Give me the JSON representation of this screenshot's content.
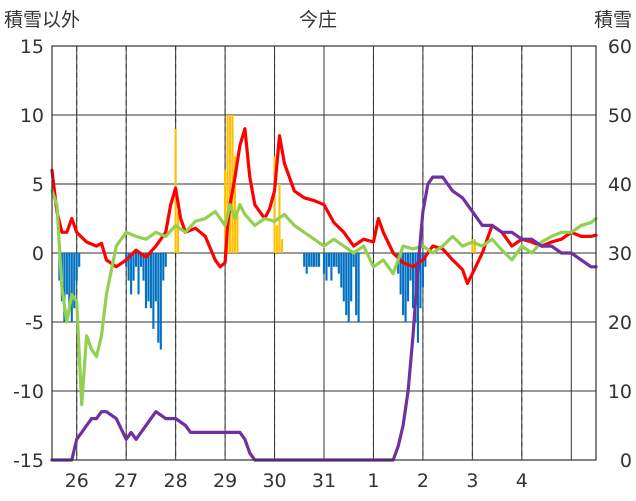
{
  "chart_data": {
    "type": "line",
    "title": "今庄",
    "ylabel_left": "積雪以外",
    "ylabel_right": "積雪",
    "y_left_range": [
      -15,
      15
    ],
    "y_left_ticks": [
      "-15",
      "-10",
      "-5",
      "0",
      "5",
      "10",
      "15"
    ],
    "y_right_range": [
      0,
      60
    ],
    "y_right_ticks": [
      "0",
      "10",
      "20",
      "30",
      "40",
      "50",
      "60"
    ],
    "x_range": [
      25.5,
      36.5
    ],
    "x_tick_labels": [
      "26",
      "27",
      "28",
      "29",
      "30",
      "31",
      "1",
      "2",
      "3",
      "4"
    ],
    "grid": true,
    "colors": {
      "red_series": "#ff0000",
      "green_series": "#92d050",
      "purple_series": "#7030a0",
      "orange_bars": "#ffc000",
      "blue_bars": "#0070c0",
      "grid": "#333333"
    },
    "series": [
      {
        "color": "#ff0000",
        "axis": "left",
        "x": [
          25.5,
          25.6,
          25.7,
          25.8,
          25.9,
          26.0,
          26.2,
          26.4,
          26.5,
          26.6,
          26.8,
          27.0,
          27.2,
          27.4,
          27.6,
          27.8,
          27.9,
          28.0,
          28.1,
          28.2,
          28.4,
          28.6,
          28.8,
          28.9,
          29.0,
          29.05,
          29.1,
          29.2,
          29.3,
          29.4,
          29.5,
          29.6,
          29.8,
          29.9,
          30.0,
          30.05,
          30.1,
          30.2,
          30.4,
          30.6,
          30.8,
          31.0,
          31.2,
          31.4,
          31.6,
          31.8,
          32.0,
          32.1,
          32.2,
          32.4,
          32.6,
          32.8,
          33.0,
          33.2,
          33.4,
          33.6,
          33.8,
          33.9,
          34.0,
          34.2,
          34.4,
          34.6,
          34.8,
          35.0,
          35.2,
          35.4,
          35.6,
          35.8,
          36.0,
          36.2,
          36.4,
          36.5
        ],
        "y": [
          6,
          3,
          1.5,
          1.5,
          2.5,
          1.5,
          0.8,
          0.5,
          0.7,
          -0.5,
          -1,
          -0.5,
          0.2,
          -0.3,
          0.5,
          1.5,
          3.5,
          4.7,
          2.5,
          1.5,
          1.8,
          1.2,
          -0.5,
          -1,
          -0.7,
          2,
          3.5,
          5.5,
          7.8,
          9,
          5.5,
          3.5,
          2.5,
          3.2,
          4.5,
          6.5,
          8.5,
          6.5,
          4.5,
          4,
          3.8,
          3.5,
          2.2,
          1.5,
          0.5,
          1,
          0.8,
          2.5,
          1.5,
          0,
          -0.7,
          -1,
          -0.5,
          0.5,
          0.3,
          -0.5,
          -1.2,
          -2.2,
          -1.5,
          0,
          2,
          1.5,
          0.5,
          1,
          0.8,
          0.5,
          0.8,
          1,
          1.5,
          1.2,
          1.2,
          1.3
        ]
      },
      {
        "color": "#92d050",
        "axis": "left",
        "x": [
          25.5,
          25.6,
          25.7,
          25.8,
          25.9,
          26.0,
          26.1,
          26.2,
          26.3,
          26.4,
          26.5,
          26.6,
          26.8,
          27.0,
          27.2,
          27.4,
          27.6,
          27.8,
          28.0,
          28.2,
          28.4,
          28.6,
          28.8,
          29.0,
          29.1,
          29.2,
          29.3,
          29.4,
          29.6,
          29.8,
          30.0,
          30.2,
          30.4,
          30.6,
          30.8,
          31.0,
          31.2,
          31.4,
          31.6,
          31.8,
          32.0,
          32.2,
          32.4,
          32.6,
          32.8,
          33.0,
          33.2,
          33.4,
          33.6,
          33.8,
          34.0,
          34.2,
          34.4,
          34.6,
          34.8,
          35.0,
          35.2,
          35.4,
          35.6,
          35.8,
          36.0,
          36.2,
          36.4,
          36.5
        ],
        "y": [
          4.5,
          3.5,
          -2.5,
          -5,
          -3,
          -3.5,
          -11,
          -6,
          -7,
          -7.5,
          -6,
          -3,
          0.5,
          1.5,
          1.2,
          1,
          1.5,
          1.2,
          2,
          1.5,
          2.3,
          2.5,
          3,
          2,
          3.5,
          2.5,
          3.5,
          2.8,
          2,
          2.5,
          2.3,
          2.8,
          2,
          1.5,
          1,
          0.5,
          1,
          0.5,
          0,
          0.5,
          -1,
          -0.5,
          -1.5,
          0.5,
          0.3,
          0.5,
          0,
          0.5,
          1.2,
          0.5,
          0.8,
          0.5,
          1,
          0.2,
          -0.5,
          0.5,
          0,
          0.8,
          1.2,
          1.5,
          1.5,
          2,
          2.2,
          2.5
        ]
      },
      {
        "color": "#7030a0",
        "axis": "right",
        "x": [
          25.5,
          25.9,
          26.0,
          26.1,
          26.2,
          26.3,
          26.4,
          26.5,
          26.6,
          26.8,
          27.0,
          27.1,
          27.2,
          27.3,
          27.4,
          27.5,
          27.6,
          27.8,
          28.0,
          28.2,
          28.3,
          28.4,
          28.6,
          28.8,
          29.0,
          29.2,
          29.3,
          29.4,
          29.5,
          29.6,
          30.0,
          32.4,
          32.5,
          32.6,
          32.7,
          32.8,
          32.9,
          33.0,
          33.1,
          33.2,
          33.3,
          33.4,
          33.5,
          33.6,
          33.8,
          34.0,
          34.2,
          34.4,
          34.6,
          34.8,
          35.0,
          35.2,
          35.4,
          35.6,
          35.8,
          36.0,
          36.2,
          36.4,
          36.5
        ],
        "y": [
          0,
          0,
          3,
          4,
          5,
          6,
          6,
          7,
          7,
          6,
          3,
          4,
          3,
          4,
          5,
          6,
          7,
          6,
          6,
          5,
          4,
          4,
          4,
          4,
          4,
          4,
          4,
          3,
          1,
          0,
          0,
          0,
          2,
          5,
          10,
          18,
          28,
          36,
          40,
          41,
          41,
          41,
          40,
          39,
          38,
          36,
          34,
          34,
          33,
          33,
          32,
          32,
          31,
          31,
          30,
          30,
          29,
          28,
          28
        ]
      }
    ],
    "bars": [
      {
        "color": "#ffc000",
        "axis": "left",
        "x": [
          28.0,
          28.05,
          29.0,
          29.05,
          29.1,
          29.15,
          29.2,
          29.25,
          30.0,
          30.05,
          30.1,
          30.15,
          34.0,
          34.05
        ],
        "values": [
          9,
          3,
          6,
          10,
          10,
          10,
          7,
          3,
          7,
          2,
          5,
          1,
          1,
          1
        ]
      },
      {
        "color": "#0070c0",
        "axis": "left",
        "x": [
          25.65,
          25.7,
          25.75,
          25.8,
          25.85,
          25.9,
          25.95,
          26.0,
          26.05,
          27.0,
          27.05,
          27.1,
          27.15,
          27.2,
          27.25,
          27.3,
          27.35,
          27.4,
          27.45,
          27.5,
          27.55,
          27.6,
          27.65,
          27.7,
          27.75,
          27.8,
          30.6,
          30.65,
          30.7,
          30.75,
          30.8,
          30.85,
          30.9,
          31.0,
          31.05,
          31.1,
          31.15,
          31.2,
          31.25,
          31.3,
          31.35,
          31.4,
          31.45,
          31.5,
          31.55,
          31.6,
          31.65,
          31.7,
          32.5,
          32.55,
          32.6,
          32.65,
          32.7,
          32.75,
          32.8,
          32.85,
          32.9,
          32.95,
          33.0,
          33.05
        ],
        "values": [
          -2,
          -3.5,
          -5,
          -3,
          -4,
          -5,
          -4,
          -2,
          -1,
          -1,
          -2,
          -3,
          -2,
          -1,
          -3,
          -1,
          -2,
          -4,
          -3.5,
          -4,
          -5.5,
          -3.5,
          -6.5,
          -7,
          -2,
          -1,
          -1,
          -1.5,
          -1,
          -1,
          -1,
          -1,
          -1,
          -1.5,
          -2,
          -1,
          -2,
          -1,
          -1,
          -1.5,
          -2.5,
          -3.5,
          -4.5,
          -5,
          -3.5,
          -1,
          -4.5,
          -5,
          -1.5,
          -3,
          -4.5,
          -5,
          -3.5,
          -2,
          -4,
          -5,
          -6.5,
          -4,
          -2.5,
          -1
        ]
      }
    ]
  }
}
